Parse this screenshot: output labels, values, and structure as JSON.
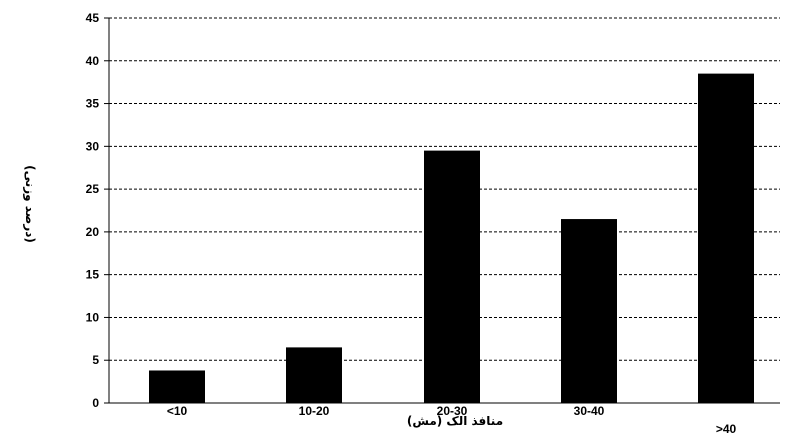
{
  "chart_data": {
    "type": "bar",
    "categories": [
      "<10",
      "10-20",
      "20-30",
      "30-40",
      ">40"
    ],
    "values": [
      3.8,
      6.5,
      29.5,
      21.5,
      38.5
    ],
    "ylim": [
      0,
      45
    ],
    "yticks": [
      0,
      5,
      10,
      15,
      20,
      25,
      30,
      35,
      40,
      45
    ],
    "xlabel": "منافذ الک (مش)",
    "ylabel": "(درصد وزنی)",
    "grid": "horizontal-dashed",
    "bar_color": "#000000"
  }
}
